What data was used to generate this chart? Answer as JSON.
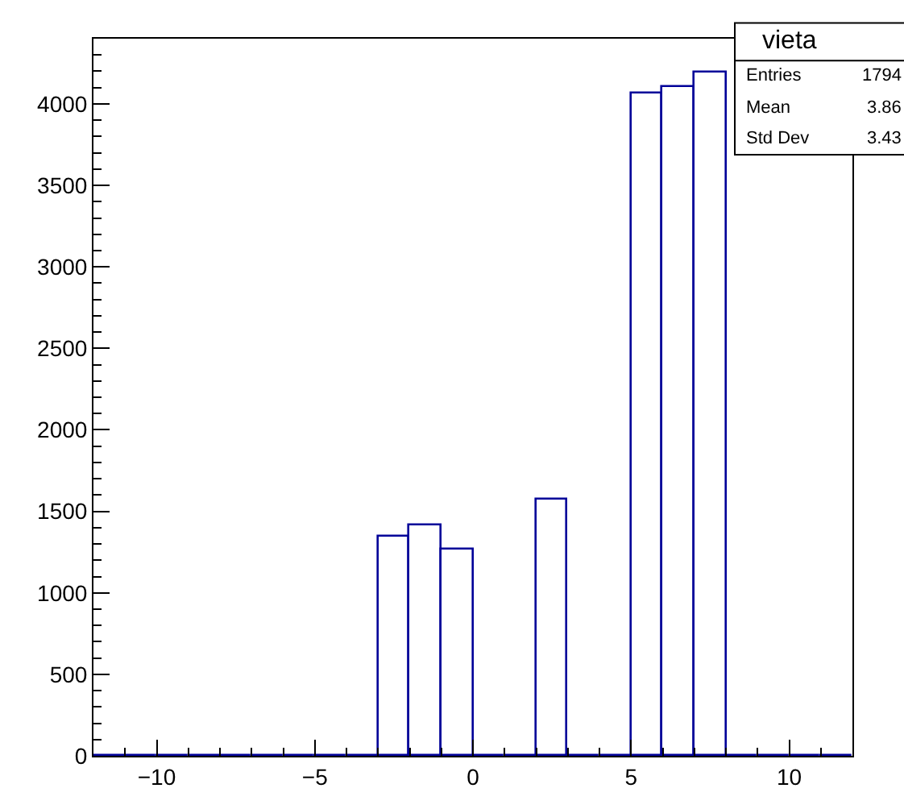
{
  "chart_data": {
    "type": "histogram",
    "bins": [
      -12,
      -11,
      -10,
      -9,
      -8,
      -7,
      -6,
      -5,
      -4,
      -3,
      -2,
      -1,
      0,
      1,
      2,
      3,
      4,
      5,
      6,
      7,
      8,
      9,
      10,
      11,
      12
    ],
    "values": [
      0,
      0,
      0,
      0,
      0,
      0,
      0,
      0,
      0,
      1340,
      1410,
      1270,
      0,
      0,
      1570,
      0,
      0,
      4060,
      4100,
      4190,
      0,
      0,
      0,
      0
    ],
    "color": "#000099",
    "xlim": [
      -12,
      12
    ],
    "xticks": [
      -10,
      -5,
      0,
      5,
      10
    ],
    "ylim": [
      0,
      4400
    ],
    "yticks": [
      0,
      500,
      1000,
      1500,
      2000,
      2500,
      3000,
      3500,
      4000
    ],
    "annotations": [
      "vieta",
      "Entries",
      "1794",
      "Mean",
      "3.86",
      "Std Dev",
      "3.43"
    ]
  }
}
